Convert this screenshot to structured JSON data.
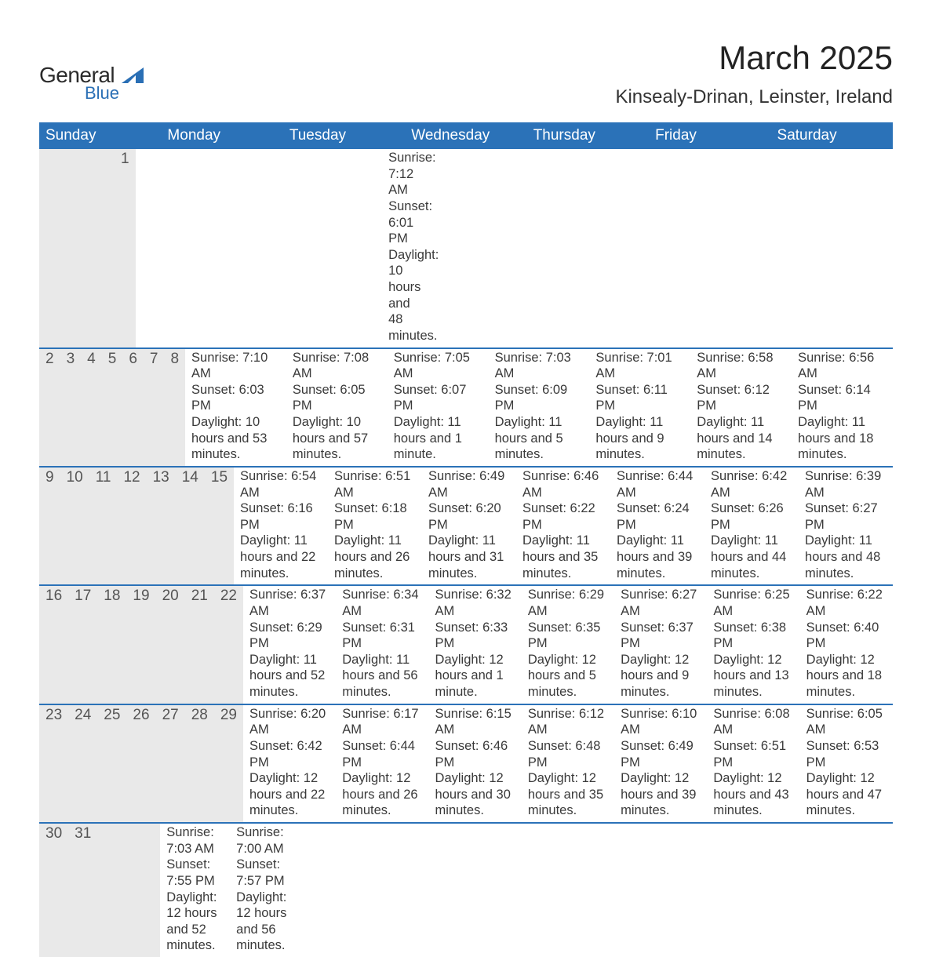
{
  "logo": {
    "word1": "General",
    "word2": "Blue",
    "tri_color": "#2a6fb5"
  },
  "header": {
    "title": "March 2025",
    "location": "Kinsealy-Drinan, Leinster, Ireland"
  },
  "colors": {
    "header_bar": "#2b72b8",
    "daynum_bg": "#e9e9e9",
    "row_rule": "#2b72b8",
    "text": "#3a3a3a"
  },
  "weekdays": [
    "Sunday",
    "Monday",
    "Tuesday",
    "Wednesday",
    "Thursday",
    "Friday",
    "Saturday"
  ],
  "labels": {
    "sunrise": "Sunrise:",
    "sunset": "Sunset:",
    "daylight": "Daylight:"
  },
  "weeks": [
    [
      null,
      null,
      null,
      null,
      null,
      null,
      {
        "n": "1",
        "sunrise": "7:12 AM",
        "sunset": "6:01 PM",
        "daylight": "10 hours and 48 minutes."
      }
    ],
    [
      {
        "n": "2",
        "sunrise": "7:10 AM",
        "sunset": "6:03 PM",
        "daylight": "10 hours and 53 minutes."
      },
      {
        "n": "3",
        "sunrise": "7:08 AM",
        "sunset": "6:05 PM",
        "daylight": "10 hours and 57 minutes."
      },
      {
        "n": "4",
        "sunrise": "7:05 AM",
        "sunset": "6:07 PM",
        "daylight": "11 hours and 1 minute."
      },
      {
        "n": "5",
        "sunrise": "7:03 AM",
        "sunset": "6:09 PM",
        "daylight": "11 hours and 5 minutes."
      },
      {
        "n": "6",
        "sunrise": "7:01 AM",
        "sunset": "6:11 PM",
        "daylight": "11 hours and 9 minutes."
      },
      {
        "n": "7",
        "sunrise": "6:58 AM",
        "sunset": "6:12 PM",
        "daylight": "11 hours and 14 minutes."
      },
      {
        "n": "8",
        "sunrise": "6:56 AM",
        "sunset": "6:14 PM",
        "daylight": "11 hours and 18 minutes."
      }
    ],
    [
      {
        "n": "9",
        "sunrise": "6:54 AM",
        "sunset": "6:16 PM",
        "daylight": "11 hours and 22 minutes."
      },
      {
        "n": "10",
        "sunrise": "6:51 AM",
        "sunset": "6:18 PM",
        "daylight": "11 hours and 26 minutes."
      },
      {
        "n": "11",
        "sunrise": "6:49 AM",
        "sunset": "6:20 PM",
        "daylight": "11 hours and 31 minutes."
      },
      {
        "n": "12",
        "sunrise": "6:46 AM",
        "sunset": "6:22 PM",
        "daylight": "11 hours and 35 minutes."
      },
      {
        "n": "13",
        "sunrise": "6:44 AM",
        "sunset": "6:24 PM",
        "daylight": "11 hours and 39 minutes."
      },
      {
        "n": "14",
        "sunrise": "6:42 AM",
        "sunset": "6:26 PM",
        "daylight": "11 hours and 44 minutes."
      },
      {
        "n": "15",
        "sunrise": "6:39 AM",
        "sunset": "6:27 PM",
        "daylight": "11 hours and 48 minutes."
      }
    ],
    [
      {
        "n": "16",
        "sunrise": "6:37 AM",
        "sunset": "6:29 PM",
        "daylight": "11 hours and 52 minutes."
      },
      {
        "n": "17",
        "sunrise": "6:34 AM",
        "sunset": "6:31 PM",
        "daylight": "11 hours and 56 minutes."
      },
      {
        "n": "18",
        "sunrise": "6:32 AM",
        "sunset": "6:33 PM",
        "daylight": "12 hours and 1 minute."
      },
      {
        "n": "19",
        "sunrise": "6:29 AM",
        "sunset": "6:35 PM",
        "daylight": "12 hours and 5 minutes."
      },
      {
        "n": "20",
        "sunrise": "6:27 AM",
        "sunset": "6:37 PM",
        "daylight": "12 hours and 9 minutes."
      },
      {
        "n": "21",
        "sunrise": "6:25 AM",
        "sunset": "6:38 PM",
        "daylight": "12 hours and 13 minutes."
      },
      {
        "n": "22",
        "sunrise": "6:22 AM",
        "sunset": "6:40 PM",
        "daylight": "12 hours and 18 minutes."
      }
    ],
    [
      {
        "n": "23",
        "sunrise": "6:20 AM",
        "sunset": "6:42 PM",
        "daylight": "12 hours and 22 minutes."
      },
      {
        "n": "24",
        "sunrise": "6:17 AM",
        "sunset": "6:44 PM",
        "daylight": "12 hours and 26 minutes."
      },
      {
        "n": "25",
        "sunrise": "6:15 AM",
        "sunset": "6:46 PM",
        "daylight": "12 hours and 30 minutes."
      },
      {
        "n": "26",
        "sunrise": "6:12 AM",
        "sunset": "6:48 PM",
        "daylight": "12 hours and 35 minutes."
      },
      {
        "n": "27",
        "sunrise": "6:10 AM",
        "sunset": "6:49 PM",
        "daylight": "12 hours and 39 minutes."
      },
      {
        "n": "28",
        "sunrise": "6:08 AM",
        "sunset": "6:51 PM",
        "daylight": "12 hours and 43 minutes."
      },
      {
        "n": "29",
        "sunrise": "6:05 AM",
        "sunset": "6:53 PM",
        "daylight": "12 hours and 47 minutes."
      }
    ],
    [
      {
        "n": "30",
        "sunrise": "7:03 AM",
        "sunset": "7:55 PM",
        "daylight": "12 hours and 52 minutes."
      },
      {
        "n": "31",
        "sunrise": "7:00 AM",
        "sunset": "7:57 PM",
        "daylight": "12 hours and 56 minutes."
      },
      null,
      null,
      null,
      null,
      null
    ]
  ]
}
